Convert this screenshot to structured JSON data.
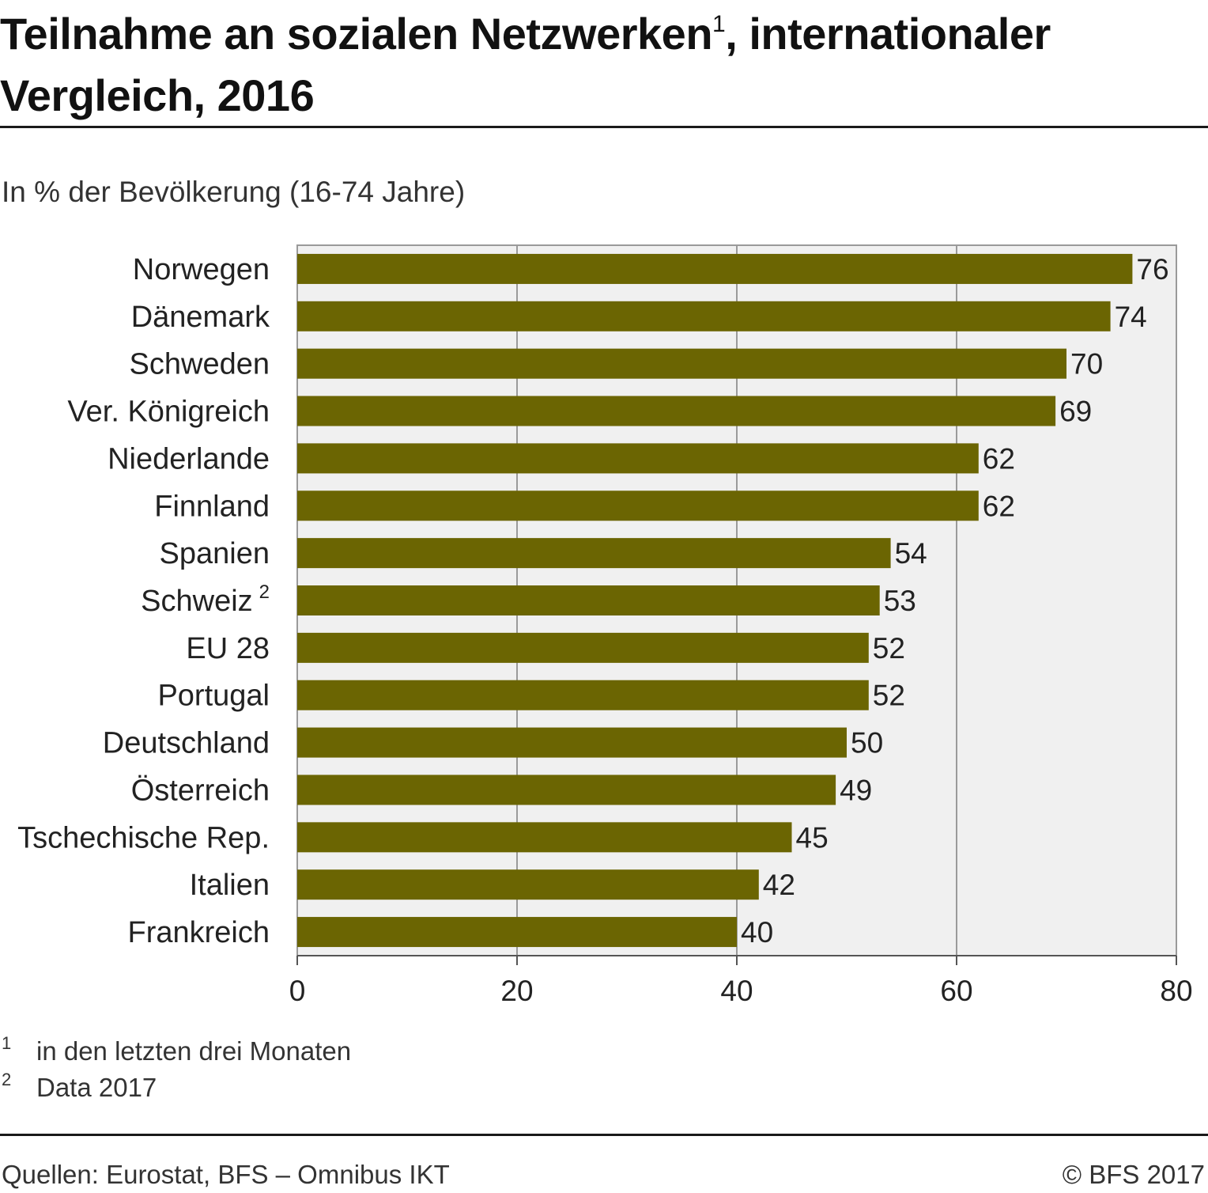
{
  "title": {
    "line1_main": "Teilnahme an sozialen Netzwerken",
    "line1_sup": "1",
    "line1_rest": ", internationaler",
    "line2": "Vergleich, 2016"
  },
  "subtitle": "In % der Bevölkerung (16-74 Jahre)",
  "chart_data": {
    "type": "bar",
    "orientation": "horizontal",
    "title": "Teilnahme an sozialen Netzwerken 1, internationaler Vergleich, 2016",
    "ylabel": "",
    "xlabel": "",
    "unit_label": "In % der Bevölkerung (16-74 Jahre)",
    "xlim": [
      0,
      80
    ],
    "xticks": [
      0,
      20,
      40,
      60,
      80
    ],
    "grid": true,
    "bar_color": "#6b6502",
    "plot_background": "#f0f0f0",
    "categories": [
      {
        "label": "Norwegen",
        "sup": ""
      },
      {
        "label": "Dänemark",
        "sup": ""
      },
      {
        "label": "Schweden",
        "sup": ""
      },
      {
        "label": "Ver. Königreich",
        "sup": ""
      },
      {
        "label": "Niederlande",
        "sup": ""
      },
      {
        "label": "Finnland",
        "sup": ""
      },
      {
        "label": "Spanien",
        "sup": ""
      },
      {
        "label": "Schweiz",
        "sup": "2"
      },
      {
        "label": "EU 28",
        "sup": ""
      },
      {
        "label": "Portugal",
        "sup": ""
      },
      {
        "label": "Deutschland",
        "sup": ""
      },
      {
        "label": "Österreich",
        "sup": ""
      },
      {
        "label": "Tschechische Rep.",
        "sup": ""
      },
      {
        "label": "Italien",
        "sup": ""
      },
      {
        "label": "Frankreich",
        "sup": ""
      }
    ],
    "values": [
      76,
      74,
      70,
      69,
      62,
      62,
      54,
      53,
      52,
      52,
      50,
      49,
      45,
      42,
      40
    ]
  },
  "footnotes": [
    {
      "mark": "1",
      "text": "in den letzten drei Monaten"
    },
    {
      "mark": "2",
      "text": "Data 2017"
    }
  ],
  "source": "Quellen: Eurostat, BFS – Omnibus IKT",
  "copyright": "© BFS 2017"
}
